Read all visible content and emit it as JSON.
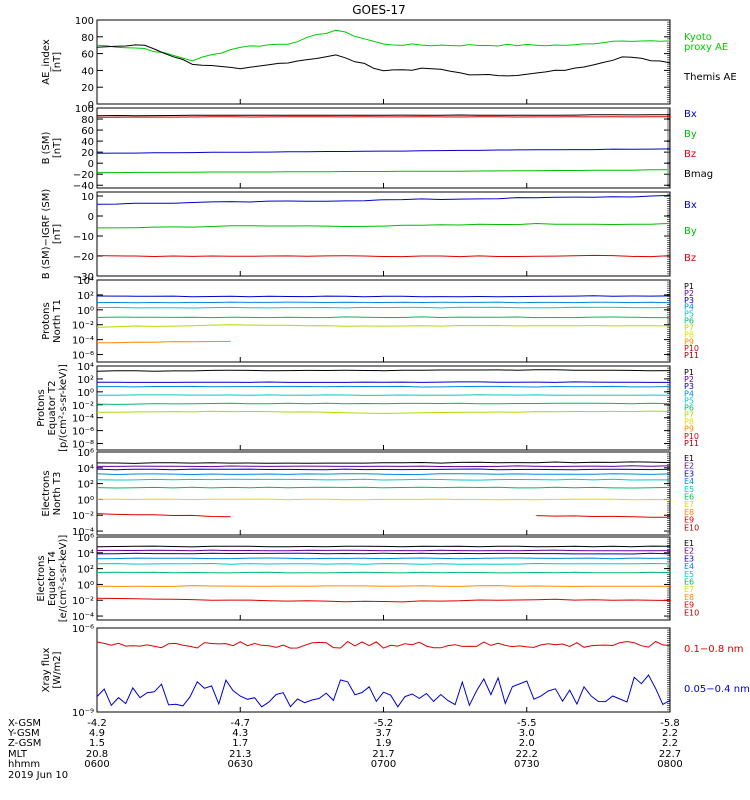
{
  "title": "GOES-17",
  "panels": [
    {
      "id": "ae",
      "ylabel": [
        "AE_index",
        "[nT]"
      ],
      "ticks": [
        {
          "v": 100,
          "t": "100"
        },
        {
          "v": 80,
          "t": "80"
        },
        {
          "v": 60,
          "t": "60"
        },
        {
          "v": 40,
          "t": "40"
        },
        {
          "v": 20,
          "t": "20"
        },
        {
          "v": 0,
          "t": "0"
        }
      ],
      "ylim": [
        0,
        100
      ],
      "scale": "linear",
      "legend": [
        {
          "text": "Kyoto",
          "color": "#00cc00"
        },
        {
          "text": "proxy AE",
          "color": "#00cc00"
        },
        {
          "text": "Themis AE",
          "color": "#000000"
        }
      ]
    },
    {
      "id": "bsm",
      "ylabel": [
        "B (SM)",
        "[nT]"
      ],
      "ticks": [
        {
          "v": 100,
          "t": "100"
        },
        {
          "v": 80,
          "t": "80"
        },
        {
          "v": 60,
          "t": "60"
        },
        {
          "v": 40,
          "t": "40"
        },
        {
          "v": 20,
          "t": "20"
        },
        {
          "v": 0,
          "t": "0"
        },
        {
          "v": -20,
          "t": "−20"
        },
        {
          "v": -40,
          "t": "−40"
        }
      ],
      "ylim": [
        -45,
        100
      ],
      "scale": "linear",
      "legend": [
        {
          "text": "Bx",
          "color": "#0000cc"
        },
        {
          "text": "By",
          "color": "#00bb00"
        },
        {
          "text": "Bz",
          "color": "#dd0000"
        },
        {
          "text": "Bmag",
          "color": "#000000"
        }
      ]
    },
    {
      "id": "bigrf",
      "ylabel": [
        "B (SM)−IGRF (SM)",
        "[nT]"
      ],
      "ticks": [
        {
          "v": 10,
          "t": "10"
        },
        {
          "v": 0,
          "t": "0"
        },
        {
          "v": -10,
          "t": "−10"
        },
        {
          "v": -20,
          "t": "−20"
        },
        {
          "v": -30,
          "t": "−30"
        }
      ],
      "ylim": [
        -30,
        12
      ],
      "scale": "linear",
      "legend": [
        {
          "text": "Bx",
          "color": "#0000cc"
        },
        {
          "text": "By",
          "color": "#00bb00"
        },
        {
          "text": "Bz",
          "color": "#dd0000"
        }
      ]
    },
    {
      "id": "pn",
      "ylabel": [
        "Protons",
        "North T1"
      ],
      "ticks": [
        {
          "v": 4,
          "t": "10⁴"
        },
        {
          "v": 2,
          "t": "10²"
        },
        {
          "v": 0,
          "t": "10⁰"
        },
        {
          "v": -2,
          "t": "10⁻²"
        },
        {
          "v": -4,
          "t": "10⁻⁴"
        },
        {
          "v": -6,
          "t": "10⁻⁶"
        }
      ],
      "ylim": [
        -7,
        4
      ],
      "scale": "log",
      "legend": [
        {
          "text": "P1",
          "color": "#000000"
        },
        {
          "text": "P2",
          "color": "#660099"
        },
        {
          "text": "P3",
          "color": "#0000cc"
        },
        {
          "text": "P4",
          "color": "#0088dd"
        },
        {
          "text": "P5",
          "color": "#00cccc"
        },
        {
          "text": "P6",
          "color": "#00bb66"
        },
        {
          "text": "P7",
          "color": "#aadd00"
        },
        {
          "text": "P8",
          "color": "#dddd00"
        },
        {
          "text": "P9",
          "color": "#ff8800"
        },
        {
          "text": "P10",
          "color": "#dd0000"
        },
        {
          "text": "P11",
          "color": "#aa0000"
        }
      ]
    },
    {
      "id": "pe",
      "ylabel": [
        "Protons",
        "Equator T2",
        "[p/(cm²-s-sr-keV)]"
      ],
      "ticks": [
        {
          "v": 4,
          "t": "10⁴"
        },
        {
          "v": 2,
          "t": "10²"
        },
        {
          "v": 0,
          "t": "10⁰"
        },
        {
          "v": -2,
          "t": "10⁻²"
        },
        {
          "v": -4,
          "t": "10⁻⁴"
        },
        {
          "v": -6,
          "t": "10⁻⁶"
        },
        {
          "v": -8,
          "t": "10⁻⁸"
        }
      ],
      "ylim": [
        -9,
        4
      ],
      "scale": "log",
      "legend": [
        {
          "text": "P1",
          "color": "#000000"
        },
        {
          "text": "P2",
          "color": "#660099"
        },
        {
          "text": "P3",
          "color": "#0000cc"
        },
        {
          "text": "P4",
          "color": "#0088dd"
        },
        {
          "text": "P5",
          "color": "#00cccc"
        },
        {
          "text": "P6",
          "color": "#00bb66"
        },
        {
          "text": "P7",
          "color": "#aadd00"
        },
        {
          "text": "P8",
          "color": "#dddd00"
        },
        {
          "text": "P9",
          "color": "#ff8800"
        },
        {
          "text": "P10",
          "color": "#dd0000"
        },
        {
          "text": "P11",
          "color": "#aa0000"
        }
      ]
    },
    {
      "id": "en",
      "ylabel": [
        "Electrons",
        "North T3"
      ],
      "ticks": [
        {
          "v": 6,
          "t": "10⁶"
        },
        {
          "v": 4,
          "t": "10⁴"
        },
        {
          "v": 2,
          "t": "10²"
        },
        {
          "v": 0,
          "t": "10⁰"
        },
        {
          "v": -2,
          "t": "10⁻²"
        },
        {
          "v": -4,
          "t": "10⁻⁴"
        }
      ],
      "ylim": [
        -4.5,
        6
      ],
      "scale": "log",
      "legend": [
        {
          "text": "E1",
          "color": "#000000"
        },
        {
          "text": "E2",
          "color": "#660099"
        },
        {
          "text": "E3",
          "color": "#0000cc"
        },
        {
          "text": "E4",
          "color": "#0088dd"
        },
        {
          "text": "E5",
          "color": "#00cccc"
        },
        {
          "text": "E6",
          "color": "#00bb66"
        },
        {
          "text": "E7",
          "color": "#dddd00"
        },
        {
          "text": "E8",
          "color": "#ff8800"
        },
        {
          "text": "E9",
          "color": "#dd0000"
        },
        {
          "text": "E10",
          "color": "#aa0000"
        }
      ]
    },
    {
      "id": "ee",
      "ylabel": [
        "Electrons",
        "Equator T4",
        "[e/(cm²-s-sr-keV)]"
      ],
      "ticks": [
        {
          "v": 6,
          "t": "10⁶"
        },
        {
          "v": 4,
          "t": "10⁴"
        },
        {
          "v": 2,
          "t": "10²"
        },
        {
          "v": 0,
          "t": "10⁰"
        },
        {
          "v": -2,
          "t": "10⁻²"
        },
        {
          "v": -4,
          "t": "10⁻⁴"
        }
      ],
      "ylim": [
        -4.5,
        6
      ],
      "scale": "log",
      "legend": [
        {
          "text": "E1",
          "color": "#000000"
        },
        {
          "text": "E2",
          "color": "#660099"
        },
        {
          "text": "E3",
          "color": "#0000cc"
        },
        {
          "text": "E4",
          "color": "#0088dd"
        },
        {
          "text": "E5",
          "color": "#00cccc"
        },
        {
          "text": "E6",
          "color": "#00bb66"
        },
        {
          "text": "E7",
          "color": "#dddd00"
        },
        {
          "text": "E8",
          "color": "#ff8800"
        },
        {
          "text": "E9",
          "color": "#dd0000"
        },
        {
          "text": "E10",
          "color": "#aa0000"
        }
      ]
    },
    {
      "id": "xray",
      "ylabel": [
        "Xray flux",
        "[W/m2]"
      ],
      "ticks": [
        {
          "v": -6,
          "t": "10⁻⁶"
        },
        {
          "v": -9,
          "t": "10⁻⁹"
        }
      ],
      "ylim": [
        -9,
        -6
      ],
      "scale": "log",
      "legend": [
        {
          "text": "0.1−0.8 nm",
          "color": "#dd0000"
        },
        {
          "text": "0.05−0.4 nm",
          "color": "#0000cc"
        }
      ]
    }
  ],
  "xaxis": {
    "ticks": [
      "0600",
      "0630",
      "0700",
      "0730",
      "0800"
    ],
    "row_labels": [
      "X-GSM",
      "Y-GSM",
      "Z-GSM",
      "MLT",
      "hhmm"
    ],
    "rows": [
      [
        "-4.2",
        "-4.7",
        "-5.2",
        "-5.5",
        "-5.8"
      ],
      [
        "4.9",
        "4.3",
        "3.7",
        "3.0",
        "2.2"
      ],
      [
        "1.5",
        "1.7",
        "1.9",
        "2.0",
        "2.2"
      ],
      [
        "20.8",
        "21.3",
        "21.7",
        "22.2",
        "22.7"
      ],
      [
        "0600",
        "0630",
        "0700",
        "0730",
        "0800"
      ]
    ],
    "date": "2019 Jun 10"
  },
  "chart_data": [
    {
      "type": "line",
      "panel": "ae",
      "ylabel": "AE_index [nT]",
      "ylim": [
        0,
        100
      ],
      "x": [
        "0600",
        "0610",
        "0620",
        "0630",
        "0640",
        "0650",
        "0700",
        "0710",
        "0720",
        "0730",
        "0740",
        "0750",
        "0800"
      ],
      "series": [
        {
          "name": "Kyoto proxy AE",
          "values": [
            70,
            66,
            52,
            68,
            72,
            88,
            71,
            70,
            70,
            70,
            70,
            76,
            74
          ]
        },
        {
          "name": "Themis AE",
          "values": [
            68,
            70,
            48,
            41,
            50,
            58,
            40,
            42,
            34,
            35,
            42,
            56,
            50
          ]
        }
      ]
    },
    {
      "type": "line",
      "panel": "B (SM)",
      "ylabel": "B (SM) [nT]",
      "ylim": [
        -45,
        100
      ],
      "x": [
        "0600",
        "0630",
        "0700",
        "0730",
        "0800"
      ],
      "series": [
        {
          "name": "Bx",
          "values": [
            18,
            20,
            22,
            24,
            26
          ]
        },
        {
          "name": "By",
          "values": [
            -17,
            -16,
            -15,
            -14,
            -12
          ]
        },
        {
          "name": "Bz",
          "values": [
            83,
            84,
            84,
            84,
            84
          ]
        },
        {
          "name": "Bmag",
          "values": [
            86,
            87,
            87,
            87,
            88
          ]
        }
      ]
    },
    {
      "type": "line",
      "panel": "B (SM)-IGRF (SM)",
      "ylabel": "B (SM)-IGRF (SM) [nT]",
      "ylim": [
        -30,
        12
      ],
      "x": [
        "0600",
        "0630",
        "0700",
        "0730",
        "0800"
      ],
      "series": [
        {
          "name": "Bx",
          "values": [
            6,
            7,
            8,
            9,
            10
          ]
        },
        {
          "name": "By",
          "values": [
            -6,
            -5,
            -5,
            -4,
            -4
          ]
        },
        {
          "name": "Bz",
          "values": [
            -20,
            -20,
            -20,
            -20,
            -20
          ]
        }
      ]
    },
    {
      "type": "line",
      "panel": "Protons North T1",
      "scale": "log10",
      "x": [
        "0600",
        "0630",
        "0700",
        "0730",
        "0800"
      ],
      "series": [
        {
          "name": "P3",
          "log10_values": [
            1.8,
            1.8,
            1.8,
            1.8,
            1.9
          ]
        },
        {
          "name": "P4",
          "log10_values": [
            1.0,
            1.0,
            1.0,
            1.0,
            1.0
          ]
        },
        {
          "name": "P5",
          "log10_values": [
            0.3,
            0.3,
            0.3,
            0.3,
            0.3
          ]
        },
        {
          "name": "P6",
          "log10_values": [
            -1.0,
            -1.0,
            -1.0,
            -1.0,
            -1.0
          ]
        },
        {
          "name": "P7",
          "log10_values": [
            -2.3,
            -2.0,
            -2.2,
            -2.1,
            -2.2
          ]
        },
        {
          "name": "P9",
          "log10_values": [
            -4.4,
            -4.2,
            null,
            null,
            null
          ]
        }
      ]
    },
    {
      "type": "line",
      "panel": "Protons Equator T2",
      "scale": "log10",
      "x": [
        "0600",
        "0630",
        "0700",
        "0730",
        "0800"
      ],
      "series": [
        {
          "name": "P1",
          "log10_values": [
            3.2,
            3.3,
            3.3,
            3.4,
            3.3
          ]
        },
        {
          "name": "P3",
          "log10_values": [
            1.5,
            1.5,
            1.5,
            1.5,
            1.5
          ]
        },
        {
          "name": "P4",
          "log10_values": [
            0.8,
            0.8,
            0.8,
            0.8,
            0.8
          ]
        },
        {
          "name": "P5",
          "log10_values": [
            -0.5,
            -0.5,
            -0.5,
            -0.5,
            -0.5
          ]
        },
        {
          "name": "P6",
          "log10_values": [
            -1.9,
            -1.8,
            -1.8,
            -1.8,
            -1.8
          ]
        },
        {
          "name": "P7",
          "log10_values": [
            -3.2,
            -3.0,
            -3.3,
            -3.1,
            -3.0
          ]
        }
      ]
    },
    {
      "type": "line",
      "panel": "Electrons North T3",
      "scale": "log10",
      "x": [
        "0600",
        "0630",
        "0700",
        "0730",
        "0800"
      ],
      "series": [
        {
          "name": "E1",
          "log10_values": [
            4.6,
            4.6,
            4.6,
            4.7,
            4.7
          ]
        },
        {
          "name": "E2",
          "log10_values": [
            4.2,
            4.2,
            4.2,
            4.2,
            4.2
          ]
        },
        {
          "name": "E3",
          "log10_values": [
            3.8,
            3.8,
            3.8,
            3.8,
            3.8
          ]
        },
        {
          "name": "E4",
          "log10_values": [
            3.2,
            3.2,
            3.2,
            3.2,
            3.2
          ]
        },
        {
          "name": "E5",
          "log10_values": [
            2.5,
            2.5,
            2.5,
            2.5,
            2.5
          ]
        },
        {
          "name": "E6",
          "log10_values": [
            1.5,
            1.5,
            1.5,
            1.5,
            1.5
          ]
        },
        {
          "name": "E7",
          "log10_values": [
            0.0,
            0.0,
            0.0,
            0.0,
            0.0
          ]
        },
        {
          "name": "E9",
          "log10_values": [
            -1.8,
            -2.2,
            null,
            -2.0,
            -2.3
          ]
        }
      ]
    },
    {
      "type": "line",
      "panel": "Electrons Equator T4",
      "scale": "log10",
      "x": [
        "0600",
        "0630",
        "0700",
        "0730",
        "0800"
      ],
      "series": [
        {
          "name": "E1",
          "log10_values": [
            4.8,
            4.8,
            4.8,
            4.8,
            4.8
          ]
        },
        {
          "name": "E2",
          "log10_values": [
            4.3,
            4.3,
            4.3,
            4.3,
            4.3
          ]
        },
        {
          "name": "E3",
          "log10_values": [
            3.9,
            3.9,
            3.9,
            3.9,
            3.9
          ]
        },
        {
          "name": "E4",
          "log10_values": [
            3.3,
            3.3,
            3.3,
            3.3,
            3.3
          ]
        },
        {
          "name": "E5",
          "log10_values": [
            2.6,
            2.6,
            2.6,
            2.6,
            2.6
          ]
        },
        {
          "name": "E6",
          "log10_values": [
            1.5,
            1.5,
            1.5,
            1.5,
            1.5
          ]
        },
        {
          "name": "E8",
          "log10_values": [
            -0.2,
            -0.2,
            -0.2,
            -0.2,
            -0.2
          ]
        },
        {
          "name": "E9",
          "log10_values": [
            -1.8,
            -2.0,
            -2.2,
            -1.9,
            -2.0
          ]
        }
      ]
    },
    {
      "type": "line",
      "panel": "Xray flux",
      "scale": "log10",
      "ylim": [
        -9,
        -6
      ],
      "x": [
        "0600",
        "0630",
        "0700",
        "0730",
        "0800"
      ],
      "series": [
        {
          "name": "0.1-0.8 nm",
          "log10_values": [
            -6.6,
            -6.6,
            -6.6,
            -6.6,
            -6.6
          ]
        },
        {
          "name": "0.05-0.4 nm",
          "log10_values": [
            -8.3,
            -8.4,
            -8.4,
            -8.3,
            -8.2
          ]
        }
      ]
    }
  ]
}
